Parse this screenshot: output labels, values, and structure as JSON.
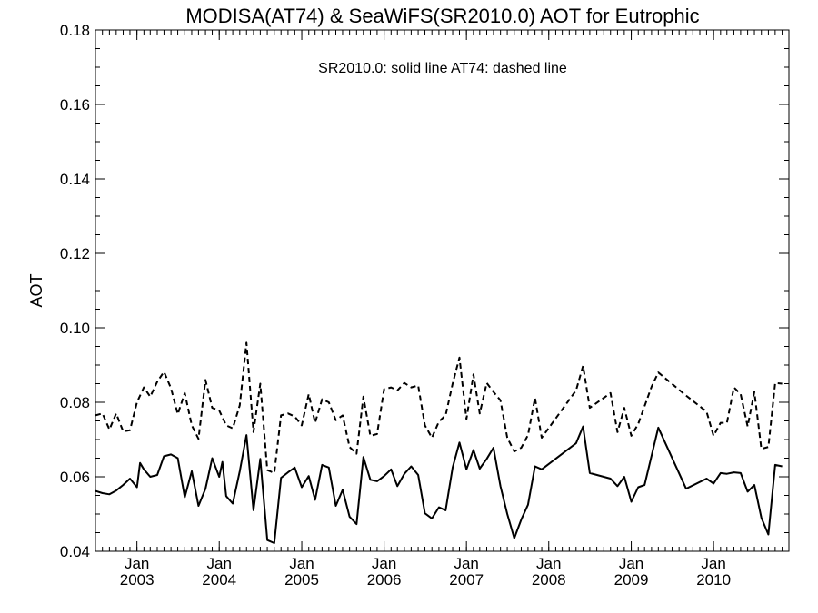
{
  "chart_data": {
    "type": "line",
    "title": "MODISA(AT74) & SeaWiFS(SR2010.0)  AOT for Eutrophic",
    "annotation": "SR2010.0: solid line   AT74: dashed line",
    "xlabel": "",
    "ylabel": "AOT",
    "xlim": [
      "2002-07-01",
      "2010-12-01"
    ],
    "ylim": [
      0.04,
      0.18
    ],
    "yticks": [
      "0.04",
      "0.06",
      "0.08",
      "0.10",
      "0.12",
      "0.14",
      "0.16",
      "0.18"
    ],
    "xticks": [
      {
        "month": "Jan",
        "year": "2003",
        "date": "2003-01-01"
      },
      {
        "month": "Jan",
        "year": "2004",
        "date": "2004-01-01"
      },
      {
        "month": "Jan",
        "year": "2005",
        "date": "2005-01-01"
      },
      {
        "month": "Jan",
        "year": "2006",
        "date": "2006-01-01"
      },
      {
        "month": "Jan",
        "year": "2007",
        "date": "2007-01-01"
      },
      {
        "month": "Jan",
        "year": "2008",
        "date": "2008-01-01"
      },
      {
        "month": "Jan",
        "year": "2009",
        "date": "2009-01-01"
      },
      {
        "month": "Jan",
        "year": "2010",
        "date": "2010-01-01"
      }
    ],
    "grid": false,
    "series": [
      {
        "name": "SR2010.0",
        "style": "solid",
        "color": "#000000",
        "points": [
          [
            "2002-07-01",
            0.0562
          ],
          [
            "2002-08-01",
            0.0556
          ],
          [
            "2002-09-01",
            0.0553
          ],
          [
            "2002-10-01",
            0.0563
          ],
          [
            "2002-11-01",
            0.0578
          ],
          [
            "2002-12-01",
            0.0595
          ],
          [
            "2003-01-01",
            0.0572
          ],
          [
            "2003-01-15",
            0.0637
          ],
          [
            "2003-02-01",
            0.062
          ],
          [
            "2003-03-01",
            0.06
          ],
          [
            "2003-04-01",
            0.0605
          ],
          [
            "2003-05-01",
            0.0655
          ],
          [
            "2003-06-01",
            0.066
          ],
          [
            "2003-07-01",
            0.065
          ],
          [
            "2003-08-01",
            0.0545
          ],
          [
            "2003-09-01",
            0.0615
          ],
          [
            "2003-10-01",
            0.0522
          ],
          [
            "2003-11-01",
            0.0568
          ],
          [
            "2003-12-01",
            0.065
          ],
          [
            "2004-01-01",
            0.06
          ],
          [
            "2004-01-15",
            0.064
          ],
          [
            "2004-02-01",
            0.0548
          ],
          [
            "2004-03-01",
            0.0528
          ],
          [
            "2004-04-01",
            0.0615
          ],
          [
            "2004-05-01",
            0.0712
          ],
          [
            "2004-06-01",
            0.051
          ],
          [
            "2004-07-01",
            0.0648
          ],
          [
            "2004-08-01",
            0.043
          ],
          [
            "2004-09-01",
            0.0422
          ],
          [
            "2004-10-01",
            0.0597
          ],
          [
            "2004-11-01",
            0.0612
          ],
          [
            "2004-12-01",
            0.0625
          ],
          [
            "2005-01-01",
            0.0572
          ],
          [
            "2005-02-01",
            0.0602
          ],
          [
            "2005-03-01",
            0.0538
          ],
          [
            "2005-04-01",
            0.0632
          ],
          [
            "2005-05-01",
            0.0625
          ],
          [
            "2005-06-01",
            0.0522
          ],
          [
            "2005-07-01",
            0.0565
          ],
          [
            "2005-08-01",
            0.0493
          ],
          [
            "2005-09-01",
            0.0473
          ],
          [
            "2005-10-01",
            0.0653
          ],
          [
            "2005-11-01",
            0.0592
          ],
          [
            "2005-12-01",
            0.0588
          ],
          [
            "2006-01-01",
            0.0602
          ],
          [
            "2006-02-01",
            0.062
          ],
          [
            "2006-03-01",
            0.0575
          ],
          [
            "2006-04-01",
            0.0608
          ],
          [
            "2006-05-01",
            0.0628
          ],
          [
            "2006-06-01",
            0.0605
          ],
          [
            "2006-07-01",
            0.0502
          ],
          [
            "2006-08-01",
            0.0488
          ],
          [
            "2006-09-01",
            0.0518
          ],
          [
            "2006-10-01",
            0.051
          ],
          [
            "2006-11-01",
            0.0625
          ],
          [
            "2006-12-01",
            0.0692
          ],
          [
            "2007-01-01",
            0.062
          ],
          [
            "2007-02-01",
            0.0672
          ],
          [
            "2007-03-01",
            0.0622
          ],
          [
            "2007-04-01",
            0.0648
          ],
          [
            "2007-05-01",
            0.0678
          ],
          [
            "2007-06-01",
            0.0575
          ],
          [
            "2007-07-01",
            0.05
          ],
          [
            "2007-08-01",
            0.0435
          ],
          [
            "2007-09-01",
            0.0485
          ],
          [
            "2007-10-01",
            0.0525
          ],
          [
            "2007-11-01",
            0.0628
          ],
          [
            "2007-12-01",
            0.062
          ],
          [
            "2008-05-01",
            0.069
          ],
          [
            "2008-06-01",
            0.0735
          ],
          [
            "2008-07-01",
            0.061
          ],
          [
            "2008-10-01",
            0.0595
          ],
          [
            "2008-11-01",
            0.0575
          ],
          [
            "2008-12-01",
            0.06
          ],
          [
            "2009-01-01",
            0.0533
          ],
          [
            "2009-02-01",
            0.0572
          ],
          [
            "2009-03-01",
            0.0578
          ],
          [
            "2009-05-01",
            0.0732
          ],
          [
            "2009-09-01",
            0.0568
          ],
          [
            "2009-12-01",
            0.0595
          ],
          [
            "2010-01-01",
            0.0582
          ],
          [
            "2010-02-01",
            0.061
          ],
          [
            "2010-03-01",
            0.0608
          ],
          [
            "2010-04-01",
            0.0612
          ],
          [
            "2010-05-01",
            0.061
          ],
          [
            "2010-06-01",
            0.056
          ],
          [
            "2010-07-01",
            0.0578
          ],
          [
            "2010-08-01",
            0.049
          ],
          [
            "2010-09-01",
            0.0445
          ],
          [
            "2010-10-01",
            0.0632
          ],
          [
            "2010-11-01",
            0.0628
          ]
        ]
      },
      {
        "name": "AT74",
        "style": "dashed",
        "color": "#000000",
        "points": [
          [
            "2002-07-01",
            0.0765
          ],
          [
            "2002-08-01",
            0.077
          ],
          [
            "2002-09-01",
            0.0727
          ],
          [
            "2002-10-01",
            0.077
          ],
          [
            "2002-11-01",
            0.0722
          ],
          [
            "2002-12-01",
            0.0725
          ],
          [
            "2003-01-01",
            0.08
          ],
          [
            "2003-02-01",
            0.084
          ],
          [
            "2003-03-01",
            0.0815
          ],
          [
            "2003-04-01",
            0.0855
          ],
          [
            "2003-05-01",
            0.0882
          ],
          [
            "2003-06-01",
            0.0838
          ],
          [
            "2003-07-01",
            0.0768
          ],
          [
            "2003-08-01",
            0.0825
          ],
          [
            "2003-09-01",
            0.0738
          ],
          [
            "2003-10-01",
            0.0702
          ],
          [
            "2003-11-01",
            0.086
          ],
          [
            "2003-12-01",
            0.0785
          ],
          [
            "2004-01-01",
            0.0778
          ],
          [
            "2004-02-01",
            0.0738
          ],
          [
            "2004-03-01",
            0.073
          ],
          [
            "2004-04-01",
            0.0792
          ],
          [
            "2004-05-01",
            0.096
          ],
          [
            "2004-06-01",
            0.072
          ],
          [
            "2004-07-01",
            0.085
          ],
          [
            "2004-08-01",
            0.0618
          ],
          [
            "2004-09-01",
            0.061
          ],
          [
            "2004-10-01",
            0.0765
          ],
          [
            "2004-11-01",
            0.077
          ],
          [
            "2004-12-01",
            0.0762
          ],
          [
            "2005-01-01",
            0.0738
          ],
          [
            "2005-02-01",
            0.0822
          ],
          [
            "2005-03-01",
            0.0745
          ],
          [
            "2005-04-01",
            0.0808
          ],
          [
            "2005-05-01",
            0.08
          ],
          [
            "2005-06-01",
            0.0752
          ],
          [
            "2005-07-01",
            0.0765
          ],
          [
            "2005-08-01",
            0.068
          ],
          [
            "2005-09-01",
            0.0662
          ],
          [
            "2005-10-01",
            0.0815
          ],
          [
            "2005-11-01",
            0.071
          ],
          [
            "2005-12-01",
            0.0715
          ],
          [
            "2006-01-01",
            0.0835
          ],
          [
            "2006-02-01",
            0.084
          ],
          [
            "2006-03-01",
            0.0832
          ],
          [
            "2006-04-01",
            0.0852
          ],
          [
            "2006-05-01",
            0.084
          ],
          [
            "2006-06-01",
            0.0845
          ],
          [
            "2006-07-01",
            0.0738
          ],
          [
            "2006-08-01",
            0.0705
          ],
          [
            "2006-09-01",
            0.0748
          ],
          [
            "2006-10-01",
            0.0765
          ],
          [
            "2006-11-01",
            0.085
          ],
          [
            "2006-12-01",
            0.092
          ],
          [
            "2007-01-01",
            0.0755
          ],
          [
            "2007-02-01",
            0.0875
          ],
          [
            "2007-03-01",
            0.077
          ],
          [
            "2007-04-01",
            0.0852
          ],
          [
            "2007-05-01",
            0.0828
          ],
          [
            "2007-06-01",
            0.0805
          ],
          [
            "2007-07-01",
            0.0705
          ],
          [
            "2007-08-01",
            0.0668
          ],
          [
            "2007-09-01",
            0.0678
          ],
          [
            "2007-10-01",
            0.0712
          ],
          [
            "2007-11-01",
            0.0812
          ],
          [
            "2007-12-01",
            0.0705
          ],
          [
            "2008-05-01",
            0.0832
          ],
          [
            "2008-06-01",
            0.0898
          ],
          [
            "2008-07-01",
            0.0785
          ],
          [
            "2008-10-01",
            0.0825
          ],
          [
            "2008-11-01",
            0.072
          ],
          [
            "2008-12-01",
            0.0785
          ],
          [
            "2009-01-01",
            0.071
          ],
          [
            "2009-02-01",
            0.0742
          ],
          [
            "2009-04-01",
            0.0842
          ],
          [
            "2009-05-01",
            0.088
          ],
          [
            "2009-09-01",
            0.0818
          ],
          [
            "2009-12-01",
            0.0775
          ],
          [
            "2010-01-01",
            0.071
          ],
          [
            "2010-02-01",
            0.0745
          ],
          [
            "2010-03-01",
            0.0745
          ],
          [
            "2010-04-01",
            0.084
          ],
          [
            "2010-05-01",
            0.0822
          ],
          [
            "2010-06-01",
            0.0735
          ],
          [
            "2010-07-01",
            0.0828
          ],
          [
            "2010-08-01",
            0.0675
          ],
          [
            "2010-09-01",
            0.068
          ],
          [
            "2010-10-01",
            0.0852
          ],
          [
            "2010-11-01",
            0.085
          ]
        ]
      }
    ]
  }
}
